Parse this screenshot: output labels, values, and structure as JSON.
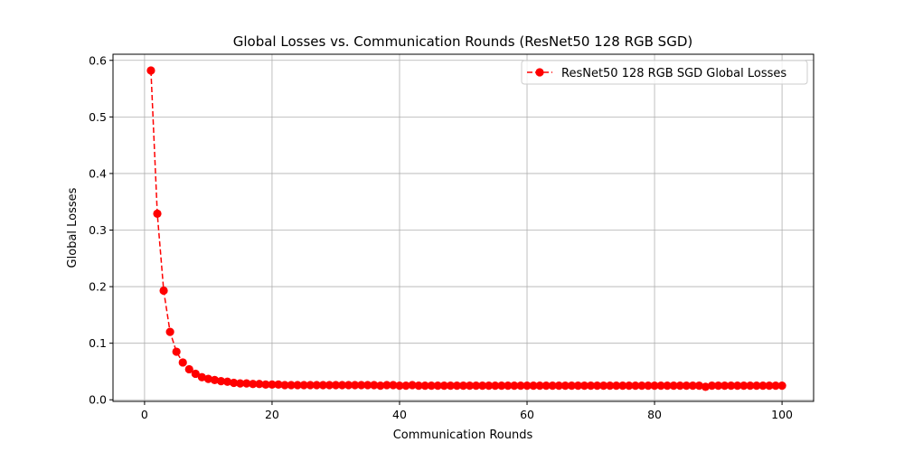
{
  "chart_data": {
    "type": "line",
    "title": "Global Losses vs. Communication Rounds (ResNet50 128 RGB SGD)",
    "xlabel": "Communication Rounds",
    "ylabel": "Global Losses",
    "xlim": [
      -4.95,
      104.95
    ],
    "ylim": [
      -0.0028,
      0.6108
    ],
    "xticks": [
      0,
      20,
      40,
      60,
      80,
      100
    ],
    "xtick_labels": [
      "0",
      "20",
      "40",
      "60",
      "80",
      "100"
    ],
    "yticks": [
      0.0,
      0.1,
      0.2,
      0.3,
      0.4,
      0.5,
      0.6
    ],
    "ytick_labels": [
      "0.0",
      "0.1",
      "0.2",
      "0.3",
      "0.4",
      "0.5",
      "0.6"
    ],
    "grid": true,
    "legend_position": "top-right",
    "series": [
      {
        "name": "ResNet50 128 RGB SGD Global Losses",
        "color": "#ff0000",
        "line_style": "dashed",
        "marker": "circle",
        "x": [
          1,
          2,
          3,
          4,
          5,
          6,
          7,
          8,
          9,
          10,
          11,
          12,
          13,
          14,
          15,
          16,
          17,
          18,
          19,
          20,
          21,
          22,
          23,
          24,
          25,
          26,
          27,
          28,
          29,
          30,
          31,
          32,
          33,
          34,
          35,
          36,
          37,
          38,
          39,
          40,
          41,
          42,
          43,
          44,
          45,
          46,
          47,
          48,
          49,
          50,
          51,
          52,
          53,
          54,
          55,
          56,
          57,
          58,
          59,
          60,
          61,
          62,
          63,
          64,
          65,
          66,
          67,
          68,
          69,
          70,
          71,
          72,
          73,
          74,
          75,
          76,
          77,
          78,
          79,
          80,
          81,
          82,
          83,
          84,
          85,
          86,
          87,
          88,
          89,
          90,
          91,
          92,
          93,
          94,
          95,
          96,
          97,
          98,
          99,
          100
        ],
        "values": [
          0.582,
          0.329,
          0.193,
          0.12,
          0.085,
          0.066,
          0.054,
          0.046,
          0.04,
          0.037,
          0.035,
          0.033,
          0.032,
          0.03,
          0.029,
          0.029,
          0.028,
          0.028,
          0.027,
          0.027,
          0.027,
          0.026,
          0.026,
          0.026,
          0.026,
          0.026,
          0.026,
          0.026,
          0.026,
          0.026,
          0.026,
          0.026,
          0.026,
          0.026,
          0.026,
          0.026,
          0.025,
          0.026,
          0.026,
          0.025,
          0.025,
          0.026,
          0.025,
          0.025,
          0.025,
          0.025,
          0.025,
          0.025,
          0.025,
          0.025,
          0.025,
          0.025,
          0.025,
          0.025,
          0.025,
          0.025,
          0.025,
          0.025,
          0.025,
          0.025,
          0.025,
          0.025,
          0.025,
          0.025,
          0.025,
          0.025,
          0.025,
          0.025,
          0.025,
          0.025,
          0.025,
          0.025,
          0.025,
          0.025,
          0.025,
          0.025,
          0.025,
          0.025,
          0.025,
          0.025,
          0.025,
          0.025,
          0.025,
          0.025,
          0.025,
          0.025,
          0.025,
          0.023,
          0.025,
          0.025,
          0.025,
          0.025,
          0.025,
          0.025,
          0.025,
          0.025,
          0.025,
          0.025,
          0.025,
          0.025
        ]
      }
    ]
  }
}
